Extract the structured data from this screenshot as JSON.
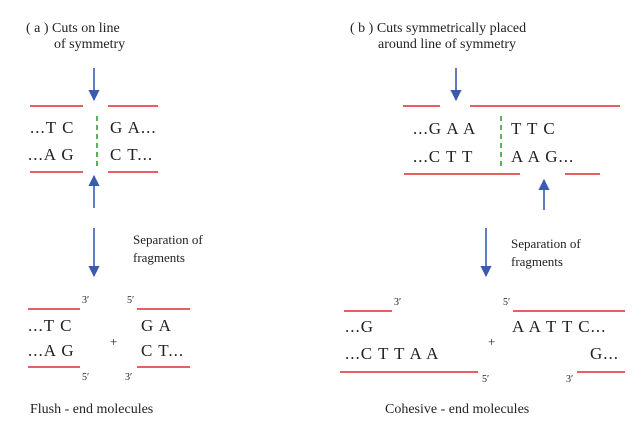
{
  "colors": {
    "strand": "#e0282e",
    "arrow": "#3a5bb0",
    "symmetry": "#3a9a3a",
    "text": "#222222"
  },
  "panel_a": {
    "title_line1": "( a ) Cuts on line",
    "title_line2": "of symmetry",
    "top_left": "...T C",
    "top_right": "G A...",
    "bottom_left": "...A G",
    "bottom_right": "C T...",
    "separation_line1": "Separation of",
    "separation_line2": "fragments",
    "frag_left_top": "...T C",
    "frag_left_bottom": "...A G",
    "frag_right_top": "G A",
    "frag_right_bottom": "C T...",
    "prime_3_left": "3′",
    "prime_5_left": "5′",
    "prime_5_right": "5′",
    "prime_3_right": "3′",
    "plus": "+",
    "caption": "Flush - end molecules"
  },
  "panel_b": {
    "title_line1": "( b ) Cuts symmetrically placed",
    "title_line2": "around line of symmetry",
    "top_left": "...G A A",
    "top_right": "T T C",
    "bottom_left": "...C T T",
    "bottom_right": "A A G...",
    "separation_line1": "Separation of",
    "separation_line2": "fragments",
    "frag_left_top": "...G",
    "frag_left_bottom": "...C T T A A",
    "frag_right_top": "A A T T C...",
    "frag_right_bottom": "G...",
    "prime_3_left": "3′",
    "prime_5_left": "5′",
    "prime_5_right": "5′",
    "prime_3_right": "3′",
    "plus": "+",
    "caption": "Cohesive - end molecules"
  }
}
